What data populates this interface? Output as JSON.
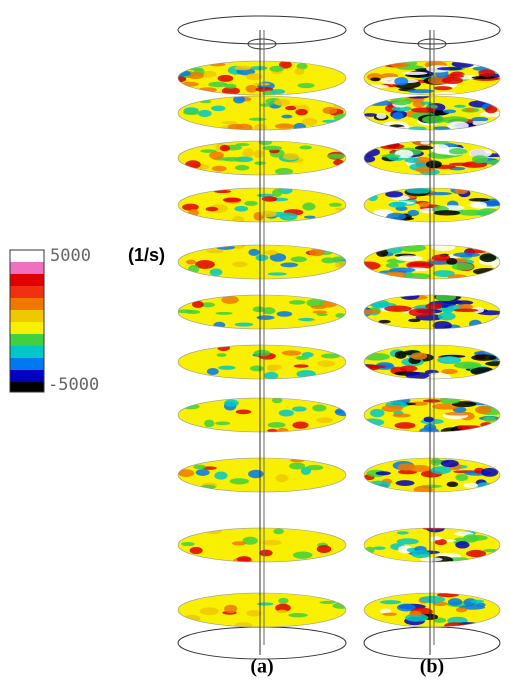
{
  "colorbar": {
    "max_label": "5000",
    "unit": "(1/s)",
    "min_label": "-5000"
  },
  "panels": [
    {
      "label": "(a)"
    },
    {
      "label": "(b)"
    }
  ]
}
